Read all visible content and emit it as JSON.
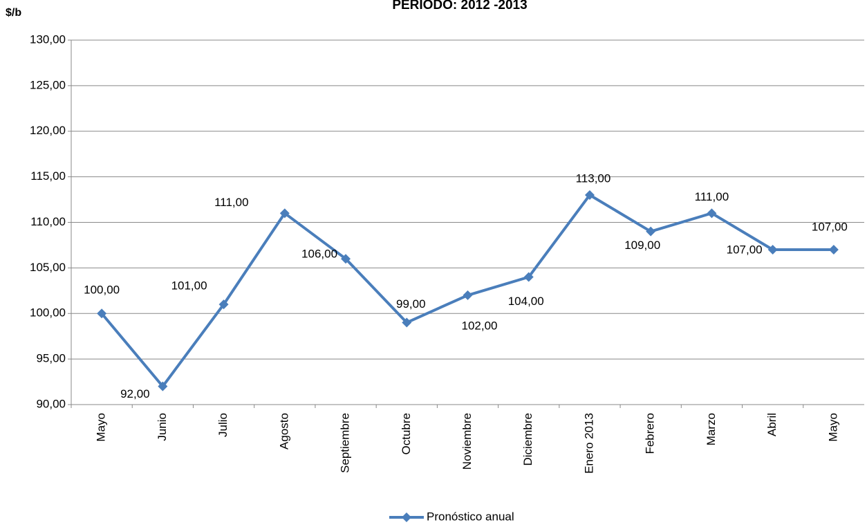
{
  "chart_data": {
    "type": "line",
    "title": "PERIODO: 2012 -2013",
    "y_label": "$/b",
    "categories": [
      "Mayo",
      "Junio",
      "Julio",
      "Agosto",
      "Septiembre",
      "Octubre",
      "Noviembre",
      "Diciembre",
      "Enero 2013",
      "Febrero",
      "Marzo",
      "Abril",
      "Mayo"
    ],
    "series": [
      {
        "name": "Pronóstico anual",
        "color": "#4a7ebb",
        "values": [
          100,
          92,
          101,
          111,
          106,
          99,
          102,
          104,
          113,
          109,
          111,
          107,
          107
        ],
        "value_labels": [
          "100,00",
          "92,00",
          "101,00",
          "111,00",
          "106,00",
          "99,00",
          "102,00",
          "104,00",
          "113,00",
          "109,00",
          "111,00",
          "107,00",
          "107,00"
        ]
      }
    ],
    "ylim": [
      90,
      130
    ],
    "yticks": [
      {
        "value": 90,
        "label": "90,00"
      },
      {
        "value": 95,
        "label": "95,00"
      },
      {
        "value": 100,
        "label": "100,00"
      },
      {
        "value": 105,
        "label": "105,00"
      },
      {
        "value": 110,
        "label": "110,00"
      },
      {
        "value": 115,
        "label": "115,00"
      },
      {
        "value": 120,
        "label": "120,00"
      },
      {
        "value": 125,
        "label": "125,00"
      },
      {
        "value": 130,
        "label": "130,00"
      }
    ],
    "grid": true,
    "legend": "bottom"
  }
}
